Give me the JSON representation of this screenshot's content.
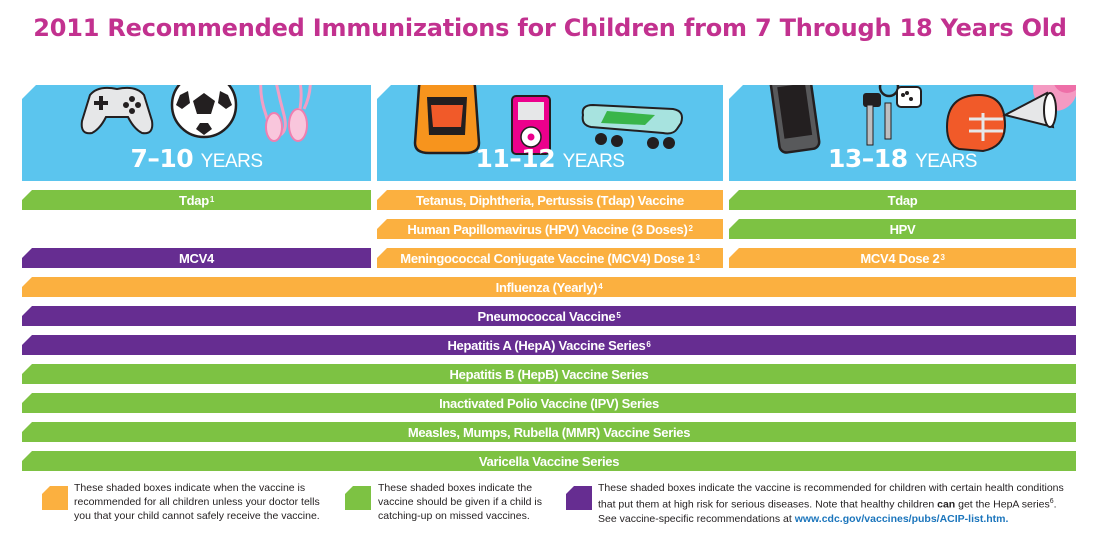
{
  "title": "2011 Recommended Immunizations for Children from 7 Through 18 Years Old",
  "colors": {
    "green": "#7dc243",
    "orange": "#fbb040",
    "purple": "#662d91",
    "panel": "#5bc5ee",
    "title": "#c2318f"
  },
  "age_groups": [
    {
      "range": "7–10",
      "unit": "YEARS",
      "icons": [
        "game-controller-icon",
        "soccer-ball-icon",
        "ballet-shoes-icon"
      ]
    },
    {
      "range": "11–12",
      "unit": "YEARS",
      "icons": [
        "backpack-icon",
        "music-player-icon",
        "skateboard-icon"
      ]
    },
    {
      "range": "13–18",
      "unit": "YEARS",
      "icons": [
        "cell-phone-icon",
        "car-keys-icon",
        "football-helmet-icon",
        "megaphone-pompom-icon"
      ]
    }
  ],
  "vaccines": {
    "tdap_7_10": {
      "text": "Tdap",
      "sup": "1"
    },
    "tdap_11_12": {
      "text": "Tetanus, Diphtheria, Pertussis (Tdap) Vaccine",
      "sup": ""
    },
    "tdap_13_18": {
      "text": "Tdap",
      "sup": ""
    },
    "hpv_11_12": {
      "text": "Human Papillomavirus (HPV) Vaccine (3 Doses)",
      "sup": "2"
    },
    "hpv_13_18": {
      "text": "HPV",
      "sup": ""
    },
    "mcv4_7_10": {
      "text": "MCV4",
      "sup": ""
    },
    "mcv4_11_12": {
      "text": "Meningococcal Conjugate Vaccine (MCV4) Dose 1",
      "sup": "3"
    },
    "mcv4_13_18": {
      "text": "MCV4 Dose 2",
      "sup": "3"
    },
    "influenza": {
      "text": "Influenza (Yearly)",
      "sup": "4"
    },
    "pneumococcal": {
      "text": "Pneumococcal Vaccine",
      "sup": "5"
    },
    "hepa": {
      "text": "Hepatitis A (HepA) Vaccine Series",
      "sup": "6"
    },
    "hepb": {
      "text": "Hepatitis B (HepB) Vaccine Series",
      "sup": ""
    },
    "ipv": {
      "text": "Inactivated Polio Vaccine (IPV) Series",
      "sup": ""
    },
    "mmr": {
      "text": "Measles, Mumps, Rubella (MMR) Vaccine Series",
      "sup": ""
    },
    "varicella": {
      "text": "Varicella Vaccine Series",
      "sup": ""
    }
  },
  "legend": {
    "orange_text": "These shaded boxes indicate when the vaccine is recommended for all children unless your doctor tells you that your child cannot safely receive the vaccine.",
    "green_text": "These shaded boxes indicate the vaccine should be given if a child is catching-up on missed vaccines.",
    "purple_text_1": "These shaded boxes indicate the vaccine is recommended for children with certain health conditions that put them at high risk for serious diseases. Note that healthy children",
    "purple_bold": "can",
    "purple_text_2": "get the HepA series",
    "purple_sup": "6",
    "purple_text_3": ". See vaccine-specific recommendations at",
    "purple_link": "www.cdc.gov/vaccines/pubs/ACIP-list.htm."
  }
}
